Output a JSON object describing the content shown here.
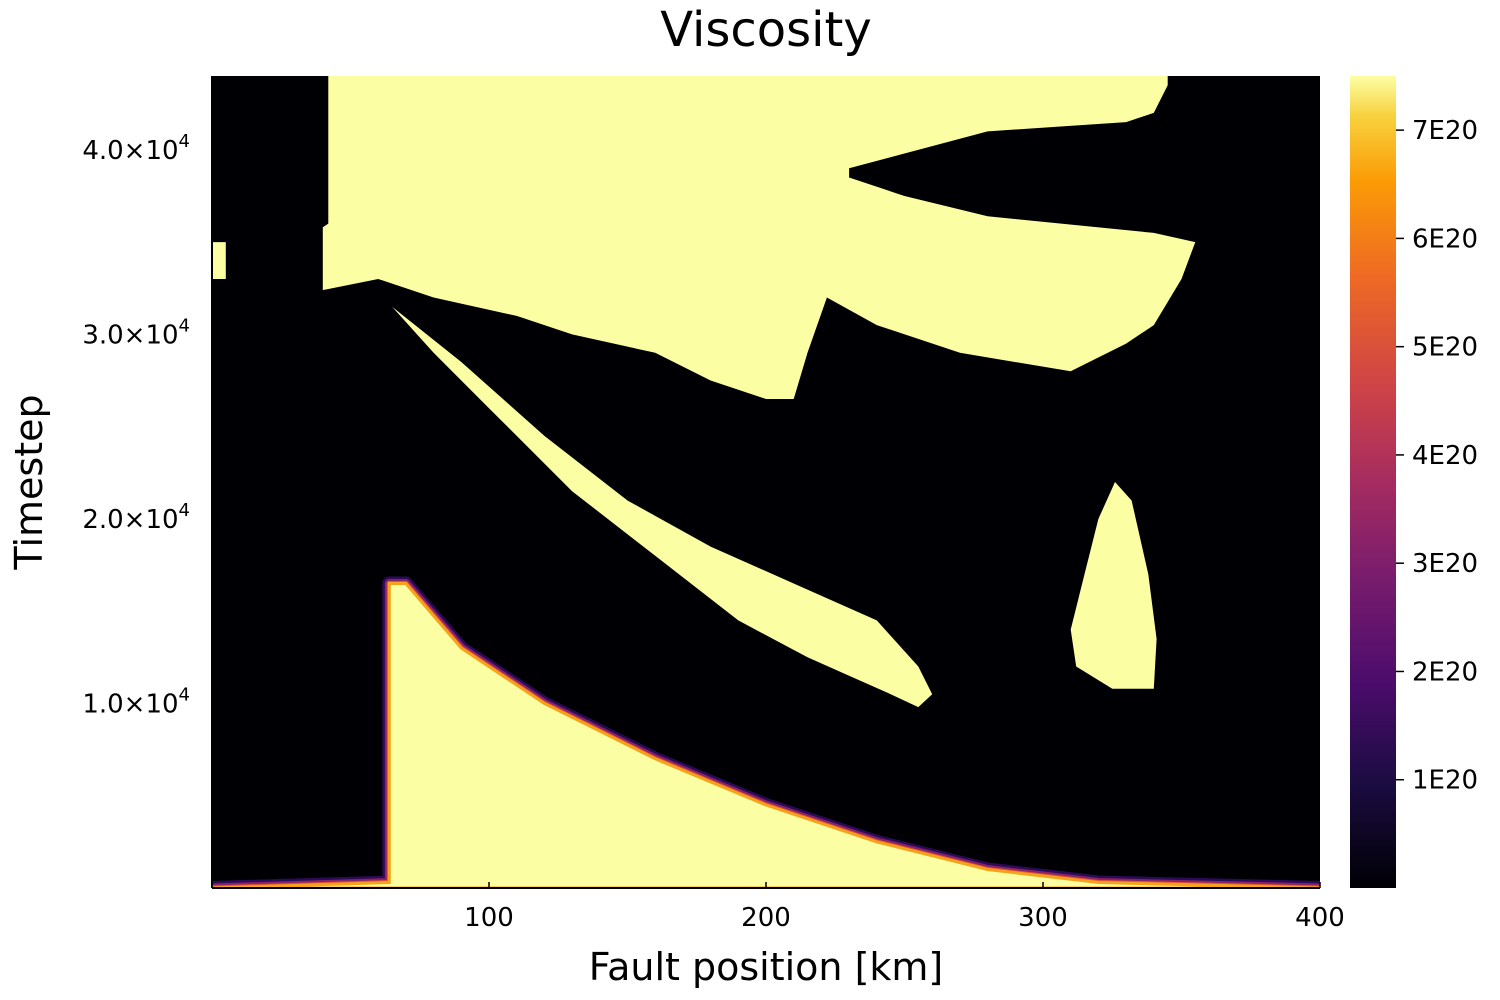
{
  "chart_data": {
    "type": "heatmap",
    "title": "Viscosity",
    "xlabel": "Fault position [km]",
    "ylabel": "Timestep",
    "xlim": [
      0,
      400
    ],
    "ylim": [
      0,
      44000
    ],
    "x_ticks": [
      {
        "value": 100,
        "label": "100"
      },
      {
        "value": 200,
        "label": "200"
      },
      {
        "value": 300,
        "label": "300"
      },
      {
        "value": 400,
        "label": "400"
      }
    ],
    "y_ticks": [
      {
        "value": 10000,
        "mantissa": "1.0×10",
        "exponent": "4"
      },
      {
        "value": 20000,
        "mantissa": "2.0×10",
        "exponent": "4"
      },
      {
        "value": 30000,
        "mantissa": "3.0×10",
        "exponent": "4"
      },
      {
        "value": 40000,
        "mantissa": "4.0×10",
        "exponent": "4"
      }
    ],
    "colorbar": {
      "colormap": "inferno",
      "range": [
        0,
        7.5e+20
      ],
      "ticks": [
        {
          "value": 1e+20,
          "label": "1E20"
        },
        {
          "value": 2e+20,
          "label": "2E20"
        },
        {
          "value": 3e+20,
          "label": "3E20"
        },
        {
          "value": 4e+20,
          "label": "4E20"
        },
        {
          "value": 5e+20,
          "label": "5E20"
        },
        {
          "value": 6e+20,
          "label": "6E20"
        },
        {
          "value": 7e+20,
          "label": "7E20"
        }
      ]
    },
    "grid": false,
    "legend": "none",
    "background_value": 0,
    "high_value": 7.5e+20,
    "high_regions_xy": [
      {
        "name": "lower-wedge",
        "points": [
          [
            64,
            300
          ],
          [
            64,
            16500
          ],
          [
            70,
            16500
          ],
          [
            90,
            13000
          ],
          [
            120,
            10000
          ],
          [
            160,
            7000
          ],
          [
            200,
            4500
          ],
          [
            240,
            2500
          ],
          [
            280,
            1000
          ],
          [
            320,
            300
          ],
          [
            400,
            0
          ],
          [
            0,
            0
          ]
        ]
      },
      {
        "name": "upper-region",
        "points": [
          [
            42,
            44000
          ],
          [
            42,
            36000
          ],
          [
            40,
            35800
          ],
          [
            40,
            32400
          ],
          [
            60,
            33000
          ],
          [
            80,
            32000
          ],
          [
            110,
            31000
          ],
          [
            130,
            30000
          ],
          [
            160,
            29000
          ],
          [
            180,
            27500
          ],
          [
            200,
            26500
          ],
          [
            210,
            26500
          ],
          [
            215,
            29000
          ],
          [
            222,
            32000
          ],
          [
            240,
            30500
          ],
          [
            270,
            29000
          ],
          [
            310,
            28000
          ],
          [
            330,
            29500
          ],
          [
            340,
            30500
          ],
          [
            350,
            33000
          ],
          [
            355,
            35000
          ],
          [
            340,
            35500
          ],
          [
            280,
            36400
          ],
          [
            250,
            37500
          ],
          [
            230,
            38500
          ],
          [
            230,
            39000
          ],
          [
            280,
            41000
          ],
          [
            330,
            41500
          ],
          [
            340,
            42000
          ],
          [
            345,
            43500
          ],
          [
            345,
            44000
          ]
        ]
      },
      {
        "name": "left-strip",
        "points": [
          [
            0,
            35000
          ],
          [
            5,
            35000
          ],
          [
            5,
            33000
          ],
          [
            0,
            33000
          ]
        ]
      },
      {
        "name": "diagonal-band",
        "points": [
          [
            65,
            31500
          ],
          [
            90,
            28500
          ],
          [
            120,
            24500
          ],
          [
            150,
            21000
          ],
          [
            180,
            18500
          ],
          [
            210,
            16500
          ],
          [
            240,
            14500
          ],
          [
            255,
            12000
          ],
          [
            260,
            10500
          ],
          [
            255,
            9800
          ],
          [
            245,
            10500
          ],
          [
            230,
            11500
          ],
          [
            215,
            12500
          ],
          [
            190,
            14500
          ],
          [
            160,
            18000
          ],
          [
            130,
            21500
          ],
          [
            100,
            26000
          ],
          [
            80,
            29000
          ]
        ]
      },
      {
        "name": "droplet",
        "points": [
          [
            326,
            22000
          ],
          [
            332,
            21000
          ],
          [
            338,
            17000
          ],
          [
            341,
            13500
          ],
          [
            340,
            10800
          ],
          [
            325,
            10800
          ],
          [
            312,
            12000
          ],
          [
            310,
            14000
          ],
          [
            315,
            17000
          ],
          [
            320,
            20000
          ]
        ]
      }
    ]
  }
}
